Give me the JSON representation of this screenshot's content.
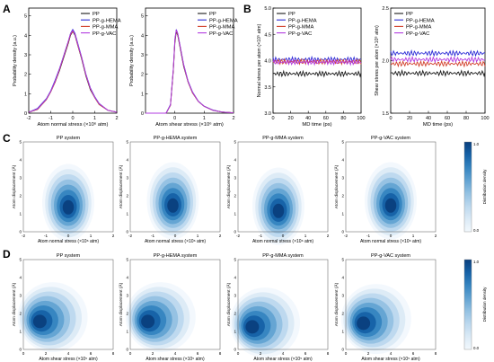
{
  "colors": {
    "series": [
      "#1a1a1a",
      "#2b2bd6",
      "#d2402b",
      "#b23be0"
    ],
    "kde": [
      "#f2f8fd",
      "#dbeaf6",
      "#bcd8ee",
      "#93c1e2",
      "#62a3d2",
      "#3584c0",
      "#1561a6",
      "#0a3f7d"
    ]
  },
  "panel_labels": [
    "A",
    "B",
    "C",
    "D"
  ],
  "legend_labels": [
    "PP",
    "PP-g-HEMA",
    "PP-g-MMA",
    "PP-g-VAC"
  ],
  "colorbar_label": "Distribution density",
  "chart_data": [
    {
      "id": "A1",
      "type": "line",
      "grid": false,
      "legend": "top-right",
      "xlabel": "Atom normal stress (×10⁶ atm)",
      "ylabel": "Probability density (a.u.)",
      "xlim": [
        -2,
        2
      ],
      "ylim": [
        0,
        5.4
      ],
      "xticks": [
        -2,
        -1,
        0,
        1,
        2
      ],
      "yticks": [
        0,
        1,
        2,
        3,
        4,
        5
      ],
      "series": [
        {
          "name": "PP",
          "x": [
            -2,
            -1.6,
            -1.2,
            -1.0,
            -0.8,
            -0.6,
            -0.4,
            -0.2,
            -0.1,
            0,
            0.1,
            0.2,
            0.4,
            0.6,
            0.8,
            1.0,
            1.2,
            1.6,
            2
          ],
          "y": [
            0.05,
            0.2,
            0.7,
            1.1,
            1.6,
            2.2,
            2.9,
            3.6,
            4.0,
            4.2,
            4.0,
            3.6,
            2.8,
            1.9,
            1.2,
            0.8,
            0.45,
            0.15,
            0.05
          ]
        },
        {
          "name": "PP-g-HEMA",
          "x": [
            -2,
            -1.6,
            -1.2,
            -1.0,
            -0.8,
            -0.6,
            -0.4,
            -0.2,
            -0.1,
            0,
            0.1,
            0.2,
            0.4,
            0.6,
            0.8,
            1.0,
            1.2,
            1.6,
            2
          ],
          "y": [
            0.05,
            0.25,
            0.75,
            1.15,
            1.7,
            2.3,
            3.0,
            3.7,
            4.1,
            4.3,
            4.1,
            3.7,
            2.9,
            2.0,
            1.3,
            0.85,
            0.5,
            0.15,
            0.05
          ]
        },
        {
          "name": "PP-g-MMA",
          "x": [
            -2,
            -1.6,
            -1.2,
            -1.0,
            -0.8,
            -0.6,
            -0.4,
            -0.2,
            -0.1,
            0,
            0.1,
            0.2,
            0.4,
            0.6,
            0.8,
            1.0,
            1.2,
            1.6,
            2
          ],
          "y": [
            0.05,
            0.2,
            0.7,
            1.1,
            1.6,
            2.25,
            2.95,
            3.65,
            4.05,
            4.2,
            4.05,
            3.6,
            2.85,
            1.95,
            1.25,
            0.8,
            0.45,
            0.15,
            0.05
          ]
        },
        {
          "name": "PP-g-VAC",
          "x": [
            -2,
            -1.6,
            -1.2,
            -1.0,
            -0.8,
            -0.6,
            -0.4,
            -0.2,
            -0.1,
            0,
            0.1,
            0.2,
            0.4,
            0.6,
            0.8,
            1.0,
            1.2,
            1.6,
            2
          ],
          "y": [
            0.05,
            0.22,
            0.72,
            1.12,
            1.65,
            2.28,
            2.98,
            3.7,
            4.08,
            4.25,
            4.05,
            3.65,
            2.88,
            1.98,
            1.28,
            0.82,
            0.48,
            0.15,
            0.05
          ]
        }
      ]
    },
    {
      "id": "A2",
      "type": "line",
      "grid": false,
      "legend": "top-right",
      "xlabel": "Atom shear stress (×10⁶ atm)",
      "ylabel": "Probability density (a.u.)",
      "xlim": [
        -1,
        2
      ],
      "ylim": [
        0,
        5.4
      ],
      "xticks": [
        0,
        1,
        2
      ],
      "yticks": [
        0,
        1,
        2,
        3,
        4,
        5
      ],
      "series": [
        {
          "name": "PP",
          "x": [
            -1,
            -0.3,
            -0.15,
            -0.05,
            0,
            0.05,
            0.1,
            0.2,
            0.3,
            0.45,
            0.6,
            0.8,
            1.0,
            1.3,
            1.6,
            2
          ],
          "y": [
            0,
            0,
            0.4,
            2.2,
            3.6,
            4.2,
            4.0,
            3.2,
            2.4,
            1.6,
            1.05,
            0.6,
            0.35,
            0.15,
            0.06,
            0.02
          ]
        },
        {
          "name": "PP-g-HEMA",
          "x": [
            -1,
            -0.3,
            -0.15,
            -0.05,
            0,
            0.05,
            0.1,
            0.2,
            0.3,
            0.45,
            0.6,
            0.8,
            1.0,
            1.3,
            1.6,
            2
          ],
          "y": [
            0,
            0,
            0.45,
            2.3,
            3.8,
            4.3,
            4.1,
            3.3,
            2.5,
            1.65,
            1.1,
            0.62,
            0.36,
            0.16,
            0.06,
            0.02
          ]
        },
        {
          "name": "PP-g-MMA",
          "x": [
            -1,
            -0.3,
            -0.15,
            -0.05,
            0,
            0.05,
            0.1,
            0.2,
            0.3,
            0.45,
            0.6,
            0.8,
            1.0,
            1.3,
            1.6,
            2
          ],
          "y": [
            0,
            0,
            0.4,
            2.25,
            3.7,
            4.25,
            4.05,
            3.25,
            2.45,
            1.6,
            1.05,
            0.6,
            0.35,
            0.15,
            0.06,
            0.02
          ]
        },
        {
          "name": "PP-g-VAC",
          "x": [
            -1,
            -0.3,
            -0.15,
            -0.05,
            0,
            0.05,
            0.1,
            0.2,
            0.3,
            0.45,
            0.6,
            0.8,
            1.0,
            1.3,
            1.6,
            2
          ],
          "y": [
            0,
            0,
            0.42,
            2.28,
            3.75,
            4.28,
            4.08,
            3.28,
            2.48,
            1.62,
            1.08,
            0.61,
            0.35,
            0.15,
            0.06,
            0.02
          ]
        }
      ]
    },
    {
      "id": "B1",
      "type": "line",
      "grid": false,
      "legend": "top-left",
      "xlabel": "MD time (ps)",
      "ylabel": "Normal stress per atom (×10⁵ atm)",
      "xlim": [
        0,
        100
      ],
      "ylim": [
        3.0,
        5.0
      ],
      "xticks": [
        0,
        20,
        40,
        60,
        80,
        100
      ],
      "yticks": [
        3.0,
        3.5,
        4.0,
        4.5,
        5.0
      ],
      "series": [
        {
          "name": "PP",
          "base": 3.75,
          "amp": 0.05
        },
        {
          "name": "PP-g-HEMA",
          "base": 4.02,
          "amp": 0.05
        },
        {
          "name": "PP-g-MMA",
          "base": 3.98,
          "amp": 0.05
        },
        {
          "name": "PP-g-VAC",
          "base": 3.97,
          "amp": 0.05
        }
      ]
    },
    {
      "id": "B2",
      "type": "line",
      "grid": false,
      "legend": "top-left",
      "xlabel": "MD time (ps)",
      "ylabel": "Shear stress per atom (×10⁵ atm)",
      "xlim": [
        0,
        100
      ],
      "ylim": [
        1.5,
        2.5
      ],
      "xticks": [
        0,
        20,
        40,
        60,
        80,
        100
      ],
      "yticks": [
        1.5,
        2.0,
        2.5
      ],
      "series": [
        {
          "name": "PP",
          "base": 1.88,
          "amp": 0.025
        },
        {
          "name": "PP-g-HEMA",
          "base": 2.07,
          "amp": 0.025
        },
        {
          "name": "PP-g-MMA",
          "base": 1.97,
          "amp": 0.025
        },
        {
          "name": "PP-g-VAC",
          "base": 2.01,
          "amp": 0.025
        }
      ]
    },
    {
      "id": "C",
      "type": "heatmap",
      "titles": [
        "PP system",
        "PP-g-HEMA system",
        "PP-g-MMA system",
        "PP-g-VAC system"
      ],
      "xlabel": "Atom normal stress (×10⁶ atm)",
      "ylabel": "Atom displacement (Å)",
      "xlim": [
        -2,
        2
      ],
      "ylim": [
        0,
        5
      ],
      "xticks": [
        -2,
        -1,
        0,
        1,
        2
      ],
      "yticks": [
        0,
        1,
        2,
        3,
        4,
        5
      ],
      "peaks": [
        {
          "x": 0.0,
          "y": 1.3
        },
        {
          "x": -0.1,
          "y": 1.4
        },
        {
          "x": -0.2,
          "y": 1.1
        },
        {
          "x": 0.0,
          "y": 1.4
        }
      ],
      "colorbar_ticks": [
        "0.0",
        "1.0"
      ]
    },
    {
      "id": "D",
      "type": "heatmap",
      "titles": [
        "PP system",
        "PP-g-HEMA system",
        "PP-g-MMA system",
        "PP-g-VAC system"
      ],
      "xlabel": "Atom shear stress (×10⁵ atm)",
      "ylabel": "Atom displacement (Å)",
      "xlim": [
        0,
        8
      ],
      "ylim": [
        0,
        5
      ],
      "xticks": [
        0,
        2,
        4,
        6,
        8
      ],
      "yticks": [
        0,
        1,
        2,
        3,
        4,
        5
      ],
      "peaks": [
        {
          "x": 1.2,
          "y": 1.5
        },
        {
          "x": 1.3,
          "y": 1.5
        },
        {
          "x": 1.0,
          "y": 1.2
        },
        {
          "x": 1.3,
          "y": 1.4
        }
      ],
      "colorbar_ticks": [
        "0.0",
        "1.0"
      ]
    }
  ]
}
